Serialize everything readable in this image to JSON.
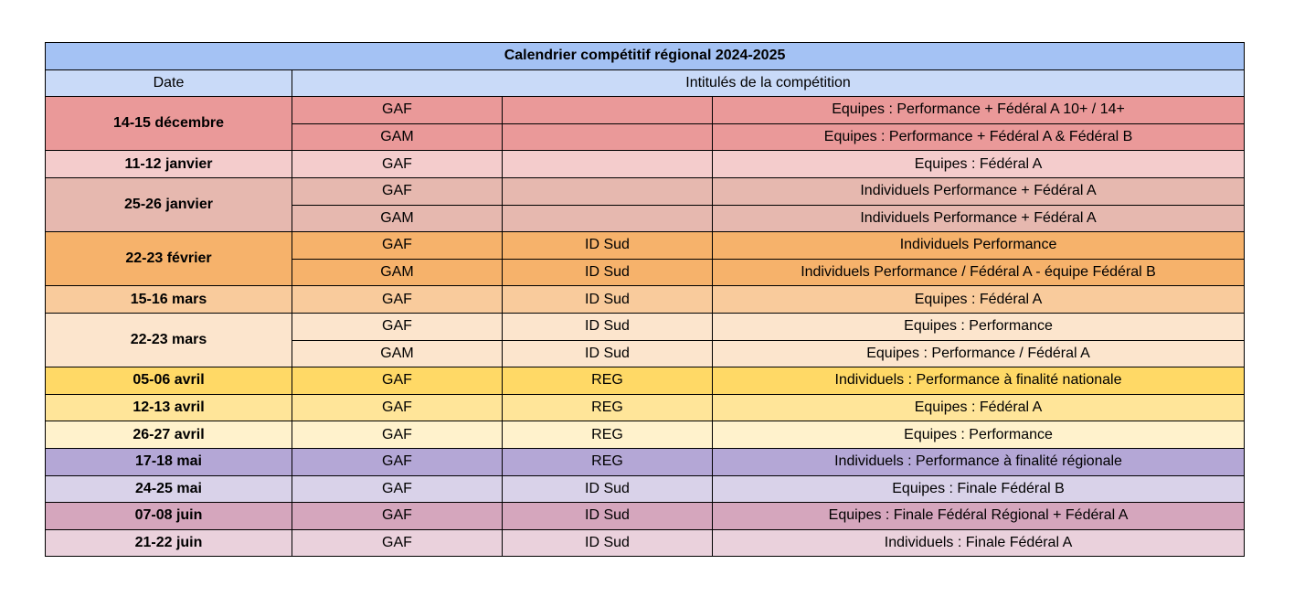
{
  "title": "Calendrier compétitif régional 2024-2025",
  "headers": {
    "date": "Date",
    "intitules": "Intitulés de la compétition"
  },
  "colors": {
    "title_bg": "#a4c2f4",
    "header_bg": "#c9daf8"
  },
  "groups": [
    {
      "date": "14-15 décembre",
      "color": "#ea9999",
      "rows": [
        {
          "discipline": "GAF",
          "niveau": "",
          "intitule": "Equipes : Performance + Fédéral A 10+ / 14+"
        },
        {
          "discipline": "GAM",
          "niveau": "",
          "intitule": "Equipes : Performance + Fédéral A & Fédéral B"
        }
      ]
    },
    {
      "date": "11-12 janvier",
      "color": "#f4cccc",
      "rows": [
        {
          "discipline": "GAF",
          "niveau": "",
          "intitule": "Equipes : Fédéral A"
        }
      ]
    },
    {
      "date": "25-26 janvier",
      "color": "#e6b8af",
      "rows": [
        {
          "discipline": "GAF",
          "niveau": "",
          "intitule": "Individuels Performance + Fédéral A"
        },
        {
          "discipline": "GAM",
          "niveau": "",
          "intitule": "Individuels Performance + Fédéral A"
        }
      ]
    },
    {
      "date": "22-23 février",
      "color": "#f6b26b",
      "rows": [
        {
          "discipline": "GAF",
          "niveau": "ID Sud",
          "intitule": "Individuels Performance"
        },
        {
          "discipline": "GAM",
          "niveau": "ID Sud",
          "intitule": "Individuels Performance / Fédéral A - équipe Fédéral B"
        }
      ]
    },
    {
      "date": "15-16 mars",
      "color": "#f9cb9c",
      "rows": [
        {
          "discipline": "GAF",
          "niveau": "ID Sud",
          "intitule": "Equipes : Fédéral A"
        }
      ]
    },
    {
      "date": "22-23 mars",
      "color": "#fce5cd",
      "rows": [
        {
          "discipline": "GAF",
          "niveau": "ID Sud",
          "intitule": "Equipes : Performance"
        },
        {
          "discipline": "GAM",
          "niveau": "ID Sud",
          "intitule": "Equipes : Performance / Fédéral A"
        }
      ]
    },
    {
      "date": "05-06 avril",
      "color": "#ffd966",
      "rows": [
        {
          "discipline": "GAF",
          "niveau": "REG",
          "intitule": "Individuels : Performance à finalité nationale"
        }
      ]
    },
    {
      "date": "12-13 avril",
      "color": "#ffe599",
      "rows": [
        {
          "discipline": "GAF",
          "niveau": "REG",
          "intitule": "Equipes : Fédéral A"
        }
      ]
    },
    {
      "date": "26-27 avril",
      "color": "#fff2cc",
      "rows": [
        {
          "discipline": "GAF",
          "niveau": "REG",
          "intitule": "Equipes : Performance"
        }
      ]
    },
    {
      "date": "17-18 mai",
      "color": "#b4a7d6",
      "rows": [
        {
          "discipline": "GAF",
          "niveau": "REG",
          "intitule": "Individuels : Performance à finalité régionale"
        }
      ]
    },
    {
      "date": "24-25 mai",
      "color": "#d9d2e9",
      "rows": [
        {
          "discipline": "GAF",
          "niveau": "ID Sud",
          "intitule": "Equipes : Finale Fédéral B"
        }
      ]
    },
    {
      "date": "07-08 juin",
      "color": "#d5a6bd",
      "rows": [
        {
          "discipline": "GAF",
          "niveau": "ID Sud",
          "intitule": "Equipes : Finale Fédéral Régional + Fédéral A"
        }
      ]
    },
    {
      "date": "21-22 juin",
      "color": "#ead1dc",
      "rows": [
        {
          "discipline": "GAF",
          "niveau": "ID Sud",
          "intitule": "Individuels : Finale Fédéral A"
        }
      ]
    }
  ]
}
